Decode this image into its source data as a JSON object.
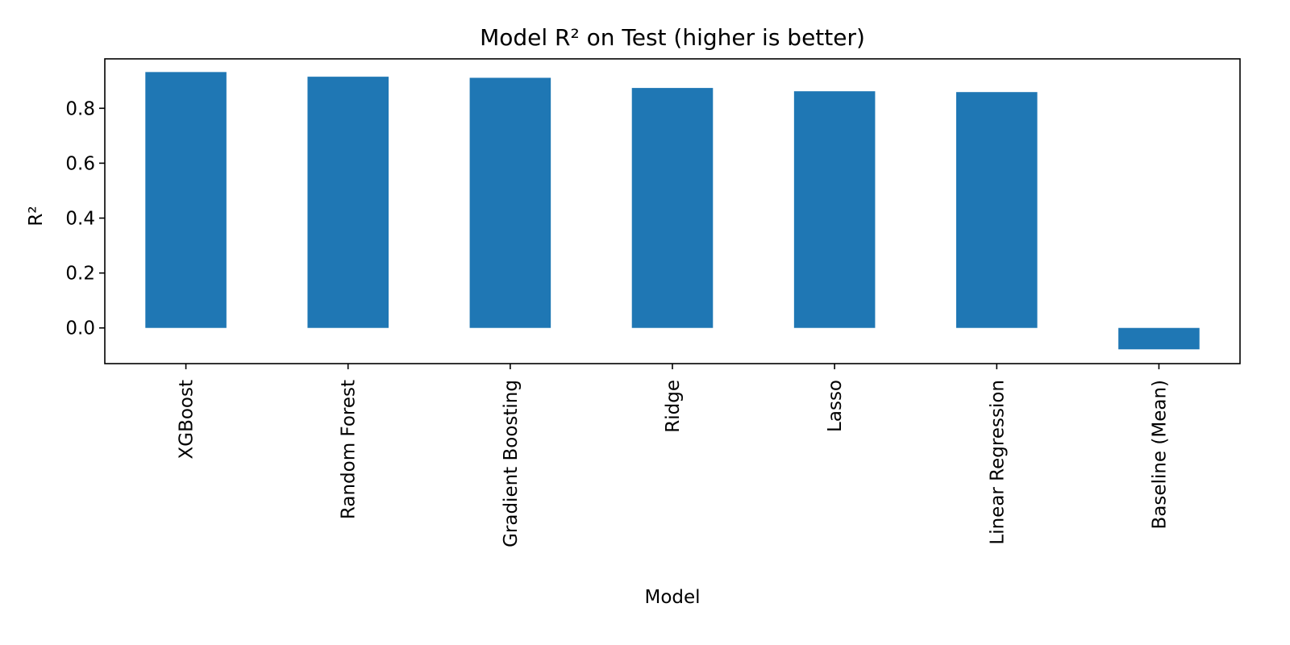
{
  "chart_data": {
    "type": "bar",
    "title": "Model R² on Test (higher is better)",
    "xlabel": "Model",
    "ylabel": "R²",
    "categories": [
      "XGBoost",
      "Random Forest",
      "Gradient Boosting",
      "Ridge",
      "Lasso",
      "Linear Regression",
      "Baseline (Mean)"
    ],
    "values": [
      0.932,
      0.915,
      0.911,
      0.874,
      0.862,
      0.859,
      -0.078
    ],
    "ylim": [
      -0.13,
      0.98
    ],
    "yticks": [
      "0.0",
      "0.2",
      "0.4",
      "0.6",
      "0.8"
    ],
    "bar_color": "#1f77b4",
    "grid": false,
    "legend": "none"
  }
}
